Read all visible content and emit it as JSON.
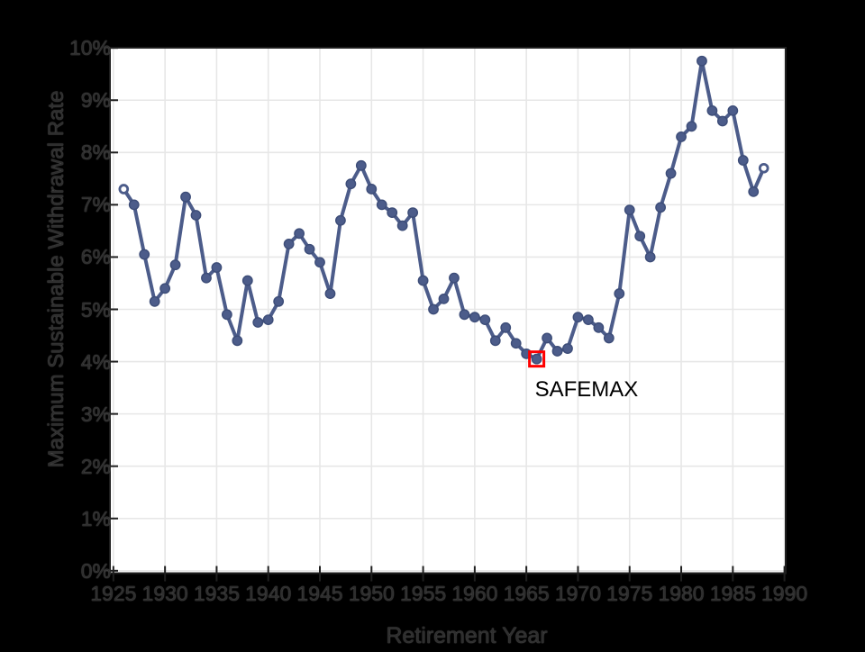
{
  "figure": {
    "background_color": "#000000",
    "plot_background_color": "#ffffff",
    "grid_color": "#e7e7e7",
    "axis_frame_color": "#1f1f1f",
    "tick_color": "#1f1f1f",
    "axis_text_color": "#2e2e2e"
  },
  "chart_data": {
    "type": "line",
    "title": "",
    "xlabel": "Retirement Year",
    "ylabel": "Maximum Sustainable Withdrawal Rate",
    "xlim": [
      1924.6,
      1990.2
    ],
    "ylim": [
      0,
      10
    ],
    "grid": true,
    "legend": "none",
    "x_ticks": [
      1925,
      1930,
      1935,
      1940,
      1945,
      1950,
      1955,
      1960,
      1965,
      1970,
      1975,
      1980,
      1985,
      1990
    ],
    "x_tick_labels": [
      "1925",
      "1930",
      "1935",
      "1940",
      "1945",
      "1950",
      "1955",
      "1960",
      "1965",
      "1970",
      "1975",
      "1980",
      "1985",
      "1990"
    ],
    "y_ticks": [
      0,
      1,
      2,
      3,
      4,
      5,
      6,
      7,
      8,
      9,
      10
    ],
    "y_tick_labels": [
      "0%",
      "1%",
      "2%",
      "3%",
      "4%",
      "5%",
      "6%",
      "7%",
      "8%",
      "9%",
      "10%"
    ],
    "series": [
      {
        "name": "Maximum Sustainable Withdrawal Rate",
        "color": "#4c5c8a",
        "marker": "circle",
        "open_endpoint_markers": true,
        "x": [
          1926,
          1927,
          1928,
          1929,
          1930,
          1931,
          1932,
          1933,
          1934,
          1935,
          1936,
          1937,
          1938,
          1939,
          1940,
          1941,
          1942,
          1943,
          1944,
          1945,
          1946,
          1947,
          1948,
          1949,
          1950,
          1951,
          1952,
          1953,
          1954,
          1955,
          1956,
          1957,
          1958,
          1959,
          1960,
          1961,
          1962,
          1963,
          1964,
          1965,
          1966,
          1967,
          1968,
          1969,
          1970,
          1971,
          1972,
          1973,
          1974,
          1975,
          1976,
          1977,
          1978,
          1979,
          1980,
          1981,
          1982,
          1983,
          1984,
          1985,
          1986,
          1987,
          1988
        ],
        "y": [
          7.3,
          7.0,
          6.05,
          5.15,
          5.4,
          5.85,
          7.15,
          6.8,
          5.6,
          5.8,
          4.9,
          4.4,
          5.55,
          4.75,
          4.8,
          5.15,
          6.25,
          6.45,
          6.15,
          5.9,
          5.3,
          6.7,
          7.4,
          7.75,
          7.3,
          7.0,
          6.85,
          6.6,
          6.85,
          5.55,
          5.0,
          5.2,
          5.6,
          4.9,
          4.85,
          4.8,
          4.4,
          4.65,
          4.35,
          4.15,
          4.05,
          4.45,
          4.2,
          4.25,
          4.85,
          4.8,
          4.65,
          4.45,
          5.3,
          6.9,
          6.4,
          6.0,
          6.95,
          7.6,
          8.3,
          8.5,
          9.75,
          8.8,
          8.6,
          8.8,
          7.85,
          7.25,
          7.7
        ]
      }
    ],
    "annotations": [
      {
        "text": "SAFEMAX",
        "x": 1966,
        "y": 4.05,
        "marker": "red-square",
        "marker_color": "#ff0000"
      }
    ]
  }
}
